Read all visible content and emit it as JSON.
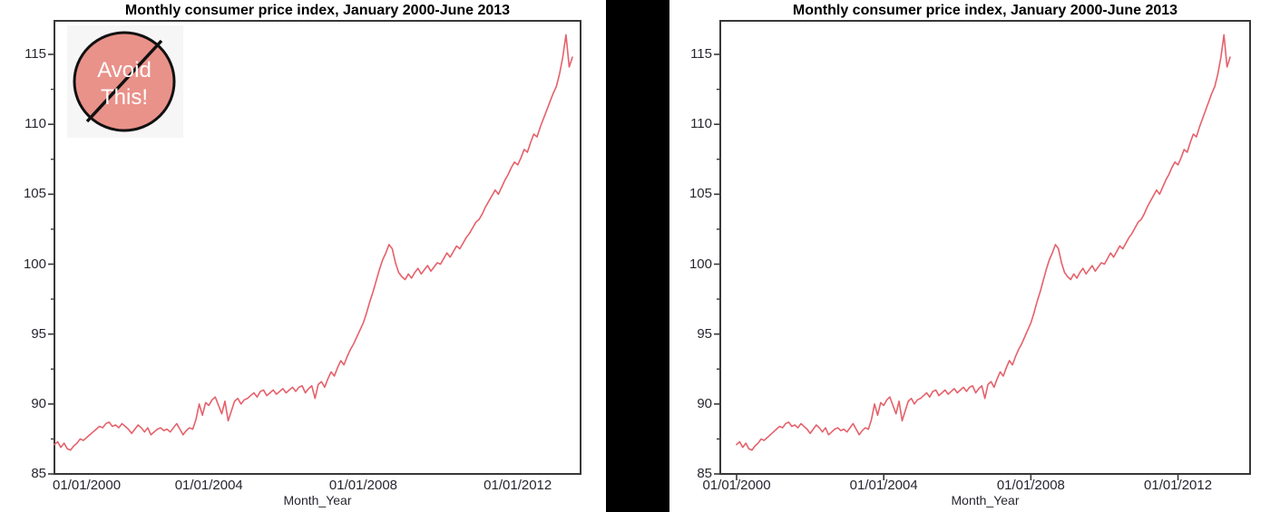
{
  "page": {
    "background": "#ffffff",
    "divider_color": "#000000"
  },
  "colors": {
    "line": "#e5616b",
    "frame": "#383838",
    "tick_text": "#26262f",
    "title_text": "#000000",
    "badge_fill": "#e9928a",
    "badge_stroke": "#111111",
    "badge_text": "#ffffff",
    "badge_background": "#f7f6f6"
  },
  "chart_data": [
    {
      "id": "left",
      "type": "line",
      "title": "Monthly consumer price index, January 2000-June 2013",
      "xlabel": "Month_Year",
      "ylabel": "",
      "x_tick_labels": [
        "01/01/2000",
        "01/01/2004",
        "01/01/2008",
        "01/01/2012"
      ],
      "y_tick_labels": [
        85,
        90,
        95,
        100,
        105,
        110,
        115
      ],
      "y_minor_ticks": [
        87.5,
        92.5,
        97.5,
        102.5,
        107.5,
        112.5
      ],
      "ylim": [
        85,
        117.5
      ],
      "x_range": [
        "2000-01",
        "2013-06"
      ],
      "x_axis_tick_marks": false,
      "annotation": {
        "line1": "Avoid",
        "line2": "This!"
      },
      "series": [
        {
          "name": "Consumer price index",
          "interval": "monthly",
          "values": [
            87.1,
            87.3,
            86.9,
            87.2,
            86.8,
            86.7,
            87.0,
            87.2,
            87.5,
            87.4,
            87.6,
            87.8,
            88.0,
            88.2,
            88.4,
            88.3,
            88.6,
            88.7,
            88.4,
            88.5,
            88.3,
            88.6,
            88.4,
            88.2,
            87.9,
            88.2,
            88.5,
            88.3,
            88.0,
            88.3,
            87.8,
            88.0,
            88.2,
            88.3,
            88.1,
            88.2,
            88.0,
            88.3,
            88.6,
            88.2,
            87.8,
            88.1,
            88.3,
            88.2,
            88.9,
            90.0,
            89.2,
            90.1,
            89.9,
            90.3,
            90.5,
            89.9,
            89.3,
            90.2,
            88.8,
            89.5,
            90.2,
            90.4,
            90.0,
            90.3,
            90.4,
            90.6,
            90.8,
            90.5,
            90.9,
            91.0,
            90.6,
            90.8,
            91.0,
            90.7,
            90.9,
            91.1,
            90.8,
            91.0,
            91.2,
            90.9,
            91.2,
            91.3,
            90.8,
            91.1,
            91.3,
            90.4,
            91.4,
            91.6,
            91.2,
            91.8,
            92.3,
            92.0,
            92.6,
            93.1,
            92.8,
            93.4,
            93.9,
            94.3,
            94.8,
            95.3,
            95.8,
            96.5,
            97.3,
            98.0,
            98.8,
            99.6,
            100.3,
            100.8,
            101.4,
            101.1,
            100.1,
            99.4,
            99.1,
            98.9,
            99.3,
            99.0,
            99.4,
            99.7,
            99.3,
            99.6,
            99.9,
            99.5,
            99.8,
            100.1,
            100.0,
            100.4,
            100.8,
            100.5,
            100.9,
            101.3,
            101.1,
            101.5,
            101.9,
            102.2,
            102.6,
            103.0,
            103.2,
            103.6,
            104.1,
            104.5,
            104.9,
            105.3,
            105.0,
            105.5,
            106.0,
            106.4,
            106.9,
            107.3,
            107.1,
            107.6,
            108.2,
            108.0,
            108.7,
            109.3,
            109.1,
            109.8,
            110.4,
            111.0,
            111.6,
            112.2,
            112.7,
            113.6,
            114.8,
            116.4,
            114.1,
            114.8
          ]
        }
      ]
    },
    {
      "id": "right",
      "type": "line",
      "title": "Monthly consumer price index, January 2000-June 2013",
      "xlabel": "Month_Year",
      "ylabel": "",
      "x_tick_labels": [
        "01/01/2000",
        "01/01/2004",
        "01/01/2008",
        "01/01/2012"
      ],
      "y_tick_labels": [
        85,
        90,
        95,
        100,
        105,
        110,
        115
      ],
      "y_minor_ticks": [
        87.5,
        92.5,
        97.5,
        102.5,
        107.5,
        112.5
      ],
      "ylim": [
        85,
        117.5
      ],
      "x_range": [
        "2000-01",
        "2013-06"
      ],
      "x_axis_tick_marks": true,
      "series": [
        {
          "name": "Consumer price index",
          "interval": "monthly",
          "values": [
            87.1,
            87.3,
            86.9,
            87.2,
            86.8,
            86.7,
            87.0,
            87.2,
            87.5,
            87.4,
            87.6,
            87.8,
            88.0,
            88.2,
            88.4,
            88.3,
            88.6,
            88.7,
            88.4,
            88.5,
            88.3,
            88.6,
            88.4,
            88.2,
            87.9,
            88.2,
            88.5,
            88.3,
            88.0,
            88.3,
            87.8,
            88.0,
            88.2,
            88.3,
            88.1,
            88.2,
            88.0,
            88.3,
            88.6,
            88.2,
            87.8,
            88.1,
            88.3,
            88.2,
            88.9,
            90.0,
            89.2,
            90.1,
            89.9,
            90.3,
            90.5,
            89.9,
            89.3,
            90.2,
            88.8,
            89.5,
            90.2,
            90.4,
            90.0,
            90.3,
            90.4,
            90.6,
            90.8,
            90.5,
            90.9,
            91.0,
            90.6,
            90.8,
            91.0,
            90.7,
            90.9,
            91.1,
            90.8,
            91.0,
            91.2,
            90.9,
            91.2,
            91.3,
            90.8,
            91.1,
            91.3,
            90.4,
            91.4,
            91.6,
            91.2,
            91.8,
            92.3,
            92.0,
            92.6,
            93.1,
            92.8,
            93.4,
            93.9,
            94.3,
            94.8,
            95.3,
            95.8,
            96.5,
            97.3,
            98.0,
            98.8,
            99.6,
            100.3,
            100.8,
            101.4,
            101.1,
            100.1,
            99.4,
            99.1,
            98.9,
            99.3,
            99.0,
            99.4,
            99.7,
            99.3,
            99.6,
            99.9,
            99.5,
            99.8,
            100.1,
            100.0,
            100.4,
            100.8,
            100.5,
            100.9,
            101.3,
            101.1,
            101.5,
            101.9,
            102.2,
            102.6,
            103.0,
            103.2,
            103.6,
            104.1,
            104.5,
            104.9,
            105.3,
            105.0,
            105.5,
            106.0,
            106.4,
            106.9,
            107.3,
            107.1,
            107.6,
            108.2,
            108.0,
            108.7,
            109.3,
            109.1,
            109.8,
            110.4,
            111.0,
            111.6,
            112.2,
            112.7,
            113.6,
            114.8,
            116.4,
            114.1,
            114.8
          ]
        }
      ]
    }
  ]
}
